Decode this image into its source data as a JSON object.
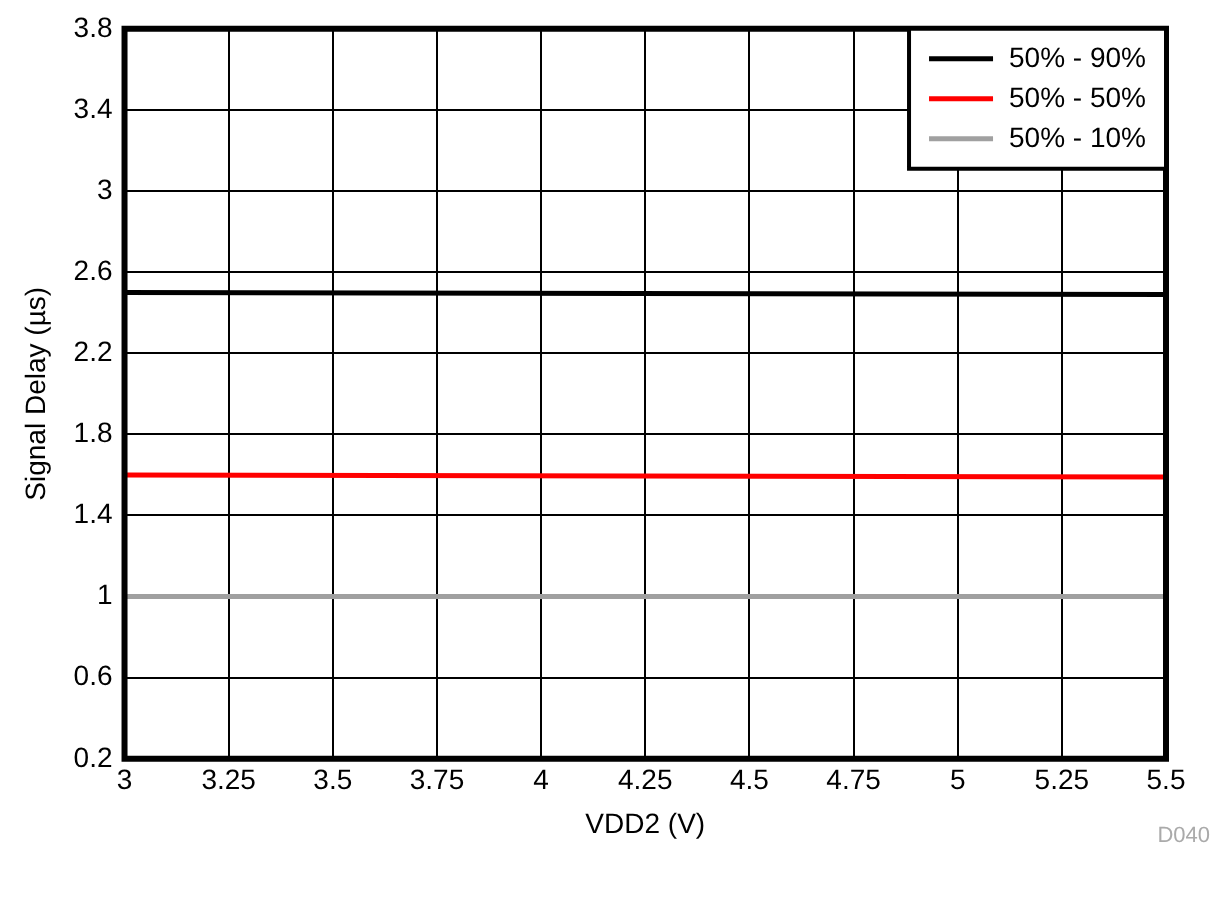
{
  "chart_data": {
    "type": "line",
    "xlabel": "VDD2 (V)",
    "ylabel": "Signal Delay (µs)",
    "x": [
      3,
      5.5
    ],
    "series": [
      {
        "name": "50% - 90%",
        "color": "#000000",
        "values": [
          2.5,
          2.49
        ]
      },
      {
        "name": "50% - 50%",
        "color": "#ff0000",
        "values": [
          1.6,
          1.59
        ]
      },
      {
        "name": "50% - 10%",
        "color": "#a0a0a0",
        "values": [
          1.0,
          1.0
        ]
      }
    ],
    "xlim": [
      3,
      5.5
    ],
    "xticks": [
      3,
      3.25,
      3.5,
      3.75,
      4,
      4.25,
      4.5,
      4.75,
      5,
      5.25,
      5.5
    ],
    "ylim": [
      0.2,
      3.8
    ],
    "yticks": [
      0.2,
      0.6,
      1,
      1.4,
      1.8,
      2.2,
      2.6,
      3,
      3.4,
      3.8
    ],
    "grid": true,
    "legend": "top right",
    "marker": "none",
    "line_style": "solid",
    "annotations": [
      "D040"
    ]
  }
}
